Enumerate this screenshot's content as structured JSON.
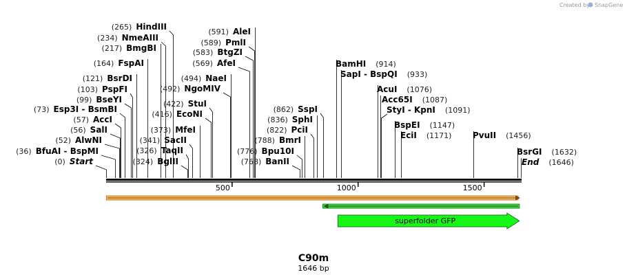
{
  "credit": {
    "text": "Created by",
    "brand": "SnapGene"
  },
  "sequence": {
    "name": "C90m",
    "length_label": "1646 bp",
    "length": 1646
  },
  "ruler": {
    "ticks": [
      {
        "value": 500,
        "label": "500"
      },
      {
        "value": 1000,
        "label": "1000"
      },
      {
        "value": 1500,
        "label": "1500"
      }
    ]
  },
  "sites": [
    {
      "name": "HindIII",
      "pos": 265,
      "pos_label": "(265)",
      "label_side": "left"
    },
    {
      "name": "NmeAIII",
      "pos": 234,
      "pos_label": "(234)",
      "label_side": "left"
    },
    {
      "name": "BmgBI",
      "pos": 217,
      "pos_label": "(217)",
      "label_side": "left"
    },
    {
      "name": "FspAI",
      "pos": 164,
      "pos_label": "(164)",
      "label_side": "left"
    },
    {
      "name": "BsrDI",
      "pos": 121,
      "pos_label": "(121)",
      "label_side": "left"
    },
    {
      "name": "PspFI",
      "pos": 103,
      "pos_label": "(103)",
      "label_side": "left"
    },
    {
      "name": "BseYI",
      "pos": 99,
      "pos_label": "(99)",
      "label_side": "left"
    },
    {
      "name": "Esp3I - BsmBI",
      "pos": 73,
      "pos_label": "(73)",
      "label_side": "left"
    },
    {
      "name": "AccI",
      "pos": 57,
      "pos_label": "(57)",
      "label_side": "left"
    },
    {
      "name": "SalI",
      "pos": 56,
      "pos_label": "(56)",
      "label_side": "left"
    },
    {
      "name": "AlwNI",
      "pos": 52,
      "pos_label": "(52)",
      "label_side": "left"
    },
    {
      "name": "BfuAI - BspMI",
      "pos": 36,
      "pos_label": "(36)",
      "label_side": "left"
    },
    {
      "name": "Start",
      "pos": 0,
      "pos_label": "(0)",
      "label_side": "left",
      "italic": true
    },
    {
      "name": "AleI",
      "pos": 591,
      "pos_label": "(591)",
      "label_side": "left"
    },
    {
      "name": "PmlI",
      "pos": 589,
      "pos_label": "(589)",
      "label_side": "left"
    },
    {
      "name": "BtgZI",
      "pos": 583,
      "pos_label": "(583)",
      "label_side": "left"
    },
    {
      "name": "AfeI",
      "pos": 569,
      "pos_label": "(569)",
      "label_side": "left"
    },
    {
      "name": "NaeI",
      "pos": 494,
      "pos_label": "(494)",
      "label_side": "left"
    },
    {
      "name": "NgoMIV",
      "pos": 492,
      "pos_label": "(492)",
      "label_side": "left"
    },
    {
      "name": "StuI",
      "pos": 422,
      "pos_label": "(422)",
      "label_side": "left"
    },
    {
      "name": "EcoNI",
      "pos": 416,
      "pos_label": "(416)",
      "label_side": "left"
    },
    {
      "name": "MfeI",
      "pos": 373,
      "pos_label": "(373)",
      "label_side": "left"
    },
    {
      "name": "SacII",
      "pos": 341,
      "pos_label": "(341)",
      "label_side": "left"
    },
    {
      "name": "TaqII",
      "pos": 326,
      "pos_label": "(326)",
      "label_side": "left"
    },
    {
      "name": "BglII",
      "pos": 324,
      "pos_label": "(324)",
      "label_side": "left"
    },
    {
      "name": "SspI",
      "pos": 862,
      "pos_label": "(862)",
      "label_side": "left"
    },
    {
      "name": "SphI",
      "pos": 836,
      "pos_label": "(836)",
      "label_side": "left"
    },
    {
      "name": "PciI",
      "pos": 822,
      "pos_label": "(822)",
      "label_side": "left"
    },
    {
      "name": "BmrI",
      "pos": 788,
      "pos_label": "(788)",
      "label_side": "left"
    },
    {
      "name": "Bpu10I",
      "pos": 776,
      "pos_label": "(776)",
      "label_side": "left"
    },
    {
      "name": "BanII",
      "pos": 768,
      "pos_label": "(768)",
      "label_side": "left"
    },
    {
      "name": "BamHI",
      "pos": 914,
      "pos_label": "(914)",
      "label_side": "right"
    },
    {
      "name": "SapI - BspQI",
      "pos": 933,
      "pos_label": "(933)",
      "label_side": "right"
    },
    {
      "name": "AcuI",
      "pos": 1076,
      "pos_label": "(1076)",
      "label_side": "right"
    },
    {
      "name": "Acc65I",
      "pos": 1087,
      "pos_label": "(1087)",
      "label_side": "right"
    },
    {
      "name": "StyI - KpnI",
      "pos": 1091,
      "pos_label": "(1091)",
      "label_side": "right"
    },
    {
      "name": "BspEI",
      "pos": 1147,
      "pos_label": "(1147)",
      "label_side": "right"
    },
    {
      "name": "EciI",
      "pos": 1171,
      "pos_label": "(1171)",
      "label_side": "right"
    },
    {
      "name": "PvuII",
      "pos": 1456,
      "pos_label": "(1456)",
      "label_side": "right"
    },
    {
      "name": "BsrGI",
      "pos": 1632,
      "pos_label": "(1632)",
      "label_side": "right"
    },
    {
      "name": "End",
      "pos": 1646,
      "pos_label": "(1646)",
      "label_side": "right",
      "italic": true
    }
  ],
  "features": [
    {
      "name": "orange-track",
      "start": 1,
      "end": 1646,
      "color": "#f4b860",
      "edge": "#c08020",
      "label": ""
    },
    {
      "name": "green-track",
      "start": 860,
      "end": 1640,
      "color": "#3cd63c",
      "edge": "#2a8a2a",
      "label": ""
    },
    {
      "name": "superfolder-gfp",
      "start": 920,
      "end": 1640,
      "color": "#17f717",
      "edge": "#1a7a1a",
      "label": "superfolder GFP"
    }
  ],
  "colors": {
    "backbone": "#000000",
    "lines": "#000000"
  }
}
